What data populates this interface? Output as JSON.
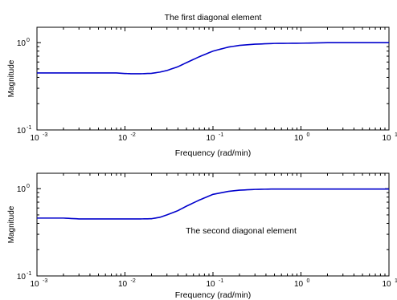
{
  "chart_data": [
    {
      "type": "line",
      "title": "The first diagonal element",
      "annotation": "",
      "xlabel": "Frequency (rad/min)",
      "ylabel": "Magnitude",
      "xscale": "log",
      "yscale": "log",
      "xlim": [
        0.001,
        10
      ],
      "ylim": [
        0.1,
        1.5
      ],
      "grid": false,
      "xticks": [
        {
          "base": "10",
          "exp": "-3"
        },
        {
          "base": "10",
          "exp": "-2"
        },
        {
          "base": "10",
          "exp": "-1"
        },
        {
          "base": "10",
          "exp": "0"
        },
        {
          "base": "10",
          "exp": "1"
        }
      ],
      "yticks": [
        {
          "base": "10",
          "exp": "-1"
        },
        {
          "base": "10",
          "exp": "0"
        }
      ],
      "line_color": "#0000cc",
      "series": [
        {
          "x": [
            0.001,
            0.002,
            0.004,
            0.008,
            0.01,
            0.012,
            0.015,
            0.02,
            0.025,
            0.03,
            0.04,
            0.05,
            0.07,
            0.1,
            0.15,
            0.2,
            0.3,
            0.5,
            1,
            2,
            5,
            10
          ],
          "y": [
            0.45,
            0.45,
            0.45,
            0.45,
            0.443,
            0.44,
            0.44,
            0.445,
            0.46,
            0.48,
            0.53,
            0.59,
            0.69,
            0.8,
            0.89,
            0.93,
            0.96,
            0.98,
            0.985,
            1.0,
            1.0,
            1.0
          ]
        }
      ]
    },
    {
      "type": "line",
      "title": "",
      "annotation": "The second diagonal element",
      "xlabel": "Frequency (rad/min)",
      "ylabel": "Magnitude",
      "xscale": "log",
      "yscale": "log",
      "xlim": [
        0.001,
        10
      ],
      "ylim": [
        0.1,
        1.5
      ],
      "grid": false,
      "xticks": [
        {
          "base": "10",
          "exp": "-3"
        },
        {
          "base": "10",
          "exp": "-2"
        },
        {
          "base": "10",
          "exp": "-1"
        },
        {
          "base": "10",
          "exp": "0"
        },
        {
          "base": "10",
          "exp": "1"
        }
      ],
      "yticks": [
        {
          "base": "10",
          "exp": "-1"
        },
        {
          "base": "10",
          "exp": "0"
        }
      ],
      "line_color": "#0000cc",
      "series": [
        {
          "x": [
            0.001,
            0.002,
            0.003,
            0.005,
            0.01,
            0.015,
            0.02,
            0.025,
            0.03,
            0.04,
            0.05,
            0.07,
            0.1,
            0.15,
            0.2,
            0.3,
            0.5,
            1,
            2,
            5,
            10
          ],
          "y": [
            0.46,
            0.46,
            0.45,
            0.45,
            0.45,
            0.45,
            0.452,
            0.47,
            0.5,
            0.56,
            0.63,
            0.74,
            0.86,
            0.93,
            0.96,
            0.98,
            0.99,
            0.99,
            0.99,
            0.99,
            0.99
          ]
        }
      ]
    }
  ]
}
